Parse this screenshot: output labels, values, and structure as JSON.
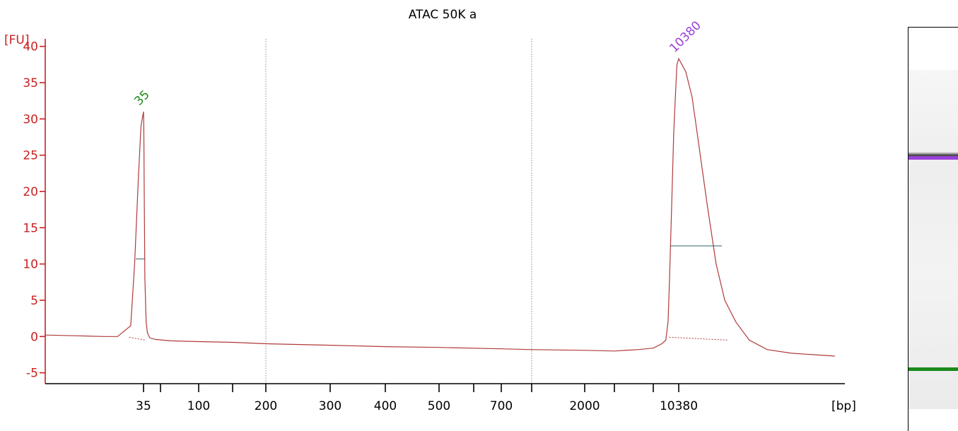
{
  "chart_data": {
    "type": "line",
    "title": "ATAC 50K a",
    "ylabel": "[FU]",
    "xlabel": "[bp]",
    "ylim": [
      -6.5,
      42.5
    ],
    "yticks": [
      -5,
      0,
      5,
      10,
      15,
      20,
      25,
      30,
      35,
      40
    ],
    "xtick_labels": [
      {
        "label": "35",
        "pos": 35
      },
      {
        "label": "",
        "pos": 50
      },
      {
        "label": "100",
        "pos": 100
      },
      {
        "label": "",
        "pos": 150
      },
      {
        "label": "200",
        "pos": 200
      },
      {
        "label": "300",
        "pos": 300
      },
      {
        "label": "400",
        "pos": 400
      },
      {
        "label": "500",
        "pos": 500
      },
      {
        "label": "",
        "pos": 600
      },
      {
        "label": "700",
        "pos": 700
      },
      {
        "label": "",
        "pos": 1000
      },
      {
        "label": "2000",
        "pos": 2000
      },
      {
        "label": "",
        "pos": 3000
      },
      {
        "label": "",
        "pos": 7000
      },
      {
        "label": "10380",
        "pos": 10380
      }
    ],
    "xlim": [
      28,
      17000
    ],
    "dotted_markers": [
      200,
      1000
    ],
    "series": [
      {
        "color": "#b03a3a",
        "x": [
          28,
          30,
          32,
          33,
          34,
          34.3,
          34.6,
          34.8,
          35,
          35.2,
          35.5,
          36,
          37,
          38,
          40,
          45,
          60,
          100,
          150,
          200,
          300,
          400,
          500,
          700,
          1000,
          2000,
          3000,
          5000,
          7000,
          8000,
          8500,
          8800,
          9000,
          9300,
          9600,
          9900,
          10100,
          10380,
          10600,
          10800,
          11000,
          11300,
          11600,
          11900,
          12300,
          12800,
          13500,
          14500,
          16500
        ],
        "values": [
          0.2,
          0.1,
          0.0,
          0.0,
          1.5,
          10.0,
          22.0,
          29.0,
          31.0,
          29.0,
          20.0,
          8.0,
          2.0,
          0.5,
          -0.2,
          -0.4,
          -0.6,
          -0.7,
          -0.8,
          -1.0,
          -1.2,
          -1.4,
          -1.5,
          -1.7,
          -1.8,
          -1.9,
          -2.0,
          -1.8,
          -1.6,
          -1.0,
          -0.5,
          2.0,
          8.0,
          18.0,
          28.0,
          34.0,
          37.5,
          38.3,
          36.5,
          33.0,
          27.0,
          18.0,
          10.0,
          5.0,
          2.0,
          -0.5,
          -1.8,
          -2.3,
          -2.7
        ]
      }
    ],
    "peaks": [
      {
        "label": "35",
        "x": 35,
        "y": 31,
        "color": "#1a8a1a",
        "fwhm_y": 10.7,
        "x_left": 34.4,
        "x_right": 35.8
      },
      {
        "label": "10380",
        "x": 10380,
        "y": 38.3,
        "color": "#9b3fd9",
        "fwhm_y": 12.5,
        "x_left": 9100,
        "x_right": 11800
      }
    ],
    "colors": {
      "axis": "#cc1f1f",
      "marker": "#8888aa"
    }
  },
  "gel": {
    "bands": [
      {
        "name": "upper",
        "color": "#9b3fd9"
      },
      {
        "name": "lower",
        "color": "#1a8a1a"
      }
    ]
  }
}
